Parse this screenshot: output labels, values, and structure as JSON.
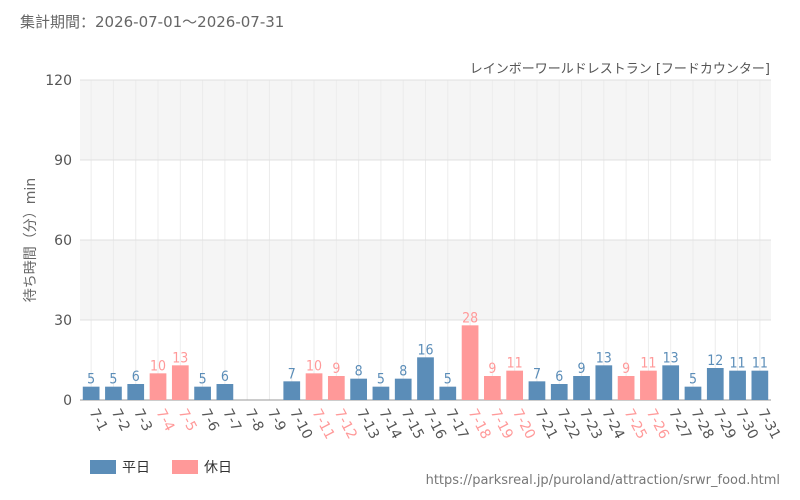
{
  "period_label": "集計期間：2026-07-01～2026-07-31",
  "source_url": "https://parksreal.jp/puroland/attraction/srwr_food.html",
  "colors": {
    "weekday": "#5b8db8",
    "holiday": "#ff9999",
    "grid": "#e0e0e0",
    "band": "#f5f5f5"
  },
  "legend": [
    {
      "label": "平日",
      "color": "#5b8db8"
    },
    {
      "label": "休日",
      "color": "#ff9999"
    }
  ],
  "chart_data": {
    "type": "bar",
    "title": "",
    "subtitle": "レインボーワールドレストラン [フードカウンター]",
    "xlabel": "",
    "ylabel": "待ち時間（分）min",
    "ylim": [
      0,
      120
    ],
    "yticks": [
      0,
      30,
      60,
      90,
      120
    ],
    "grid": true,
    "legend_position": "bottom-left",
    "categories": [
      "7-1",
      "7-2",
      "7-3",
      "7-4",
      "7-5",
      "7-6",
      "7-7",
      "7-8",
      "7-9",
      "7-10",
      "7-11",
      "7-12",
      "7-13",
      "7-14",
      "7-15",
      "7-16",
      "7-17",
      "7-18",
      "7-19",
      "7-20",
      "7-21",
      "7-22",
      "7-23",
      "7-24",
      "7-25",
      "7-26",
      "7-27",
      "7-28",
      "7-29",
      "7-30",
      "7-31"
    ],
    "values": [
      5,
      5,
      6,
      10,
      13,
      5,
      6,
      null,
      null,
      7,
      10,
      9,
      8,
      5,
      8,
      16,
      5,
      28,
      9,
      11,
      7,
      6,
      9,
      13,
      9,
      11,
      13,
      5,
      12,
      11,
      11
    ],
    "day_type": [
      "平日",
      "平日",
      "平日",
      "休日",
      "休日",
      "平日",
      "平日",
      "平日",
      "平日",
      "平日",
      "休日",
      "休日",
      "平日",
      "平日",
      "平日",
      "平日",
      "平日",
      "休日",
      "休日",
      "休日",
      "平日",
      "平日",
      "平日",
      "平日",
      "休日",
      "休日",
      "平日",
      "平日",
      "平日",
      "平日",
      "平日"
    ]
  }
}
